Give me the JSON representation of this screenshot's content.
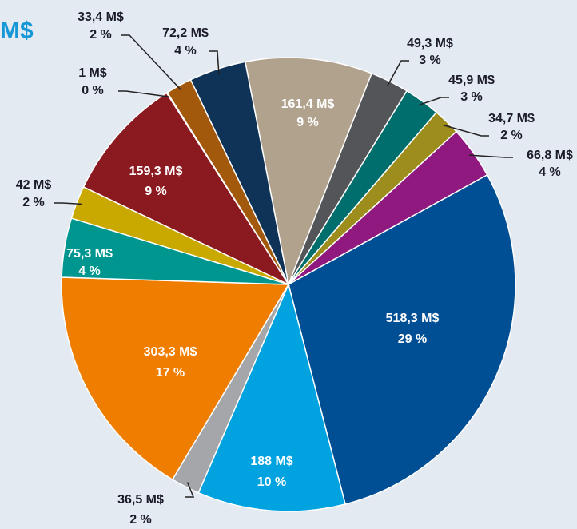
{
  "chart_data": {
    "type": "pie",
    "title": "M$",
    "values": [
      161.4,
      49.3,
      45.9,
      34.7,
      66.8,
      518.3,
      188,
      36.5,
      303.3,
      75.3,
      42,
      159.3,
      1,
      33.4,
      72.2
    ],
    "value_labels": [
      "161,4 M$",
      "49,3 M$",
      "45,9 M$",
      "34,7 M$",
      "66,8 M$",
      "518,3 M$",
      "188 M$",
      "36,5 M$",
      "303,3 M$",
      "75,3 M$",
      "42 M$",
      "159,3 M$",
      "1 M$",
      "33,4 M$",
      "72,2  M$"
    ],
    "percent_labels": [
      "9 %",
      "3 %",
      "3 %",
      "2 %",
      "4 %",
      "29 %",
      "10 %",
      "2 %",
      "17 %",
      "4 %",
      "2 %",
      "9 %",
      "0 %",
      "2 %",
      "4 %"
    ],
    "colors": [
      "#b1a28e",
      "#545559",
      "#006e6c",
      "#9c8d1c",
      "#8f197f",
      "#004e93",
      "#00a3e0",
      "#a4a6a9",
      "#ef7d00",
      "#009690",
      "#c9a900",
      "#8b1a20",
      "#c4b4b4",
      "#a2590c",
      "#0e3357"
    ]
  }
}
